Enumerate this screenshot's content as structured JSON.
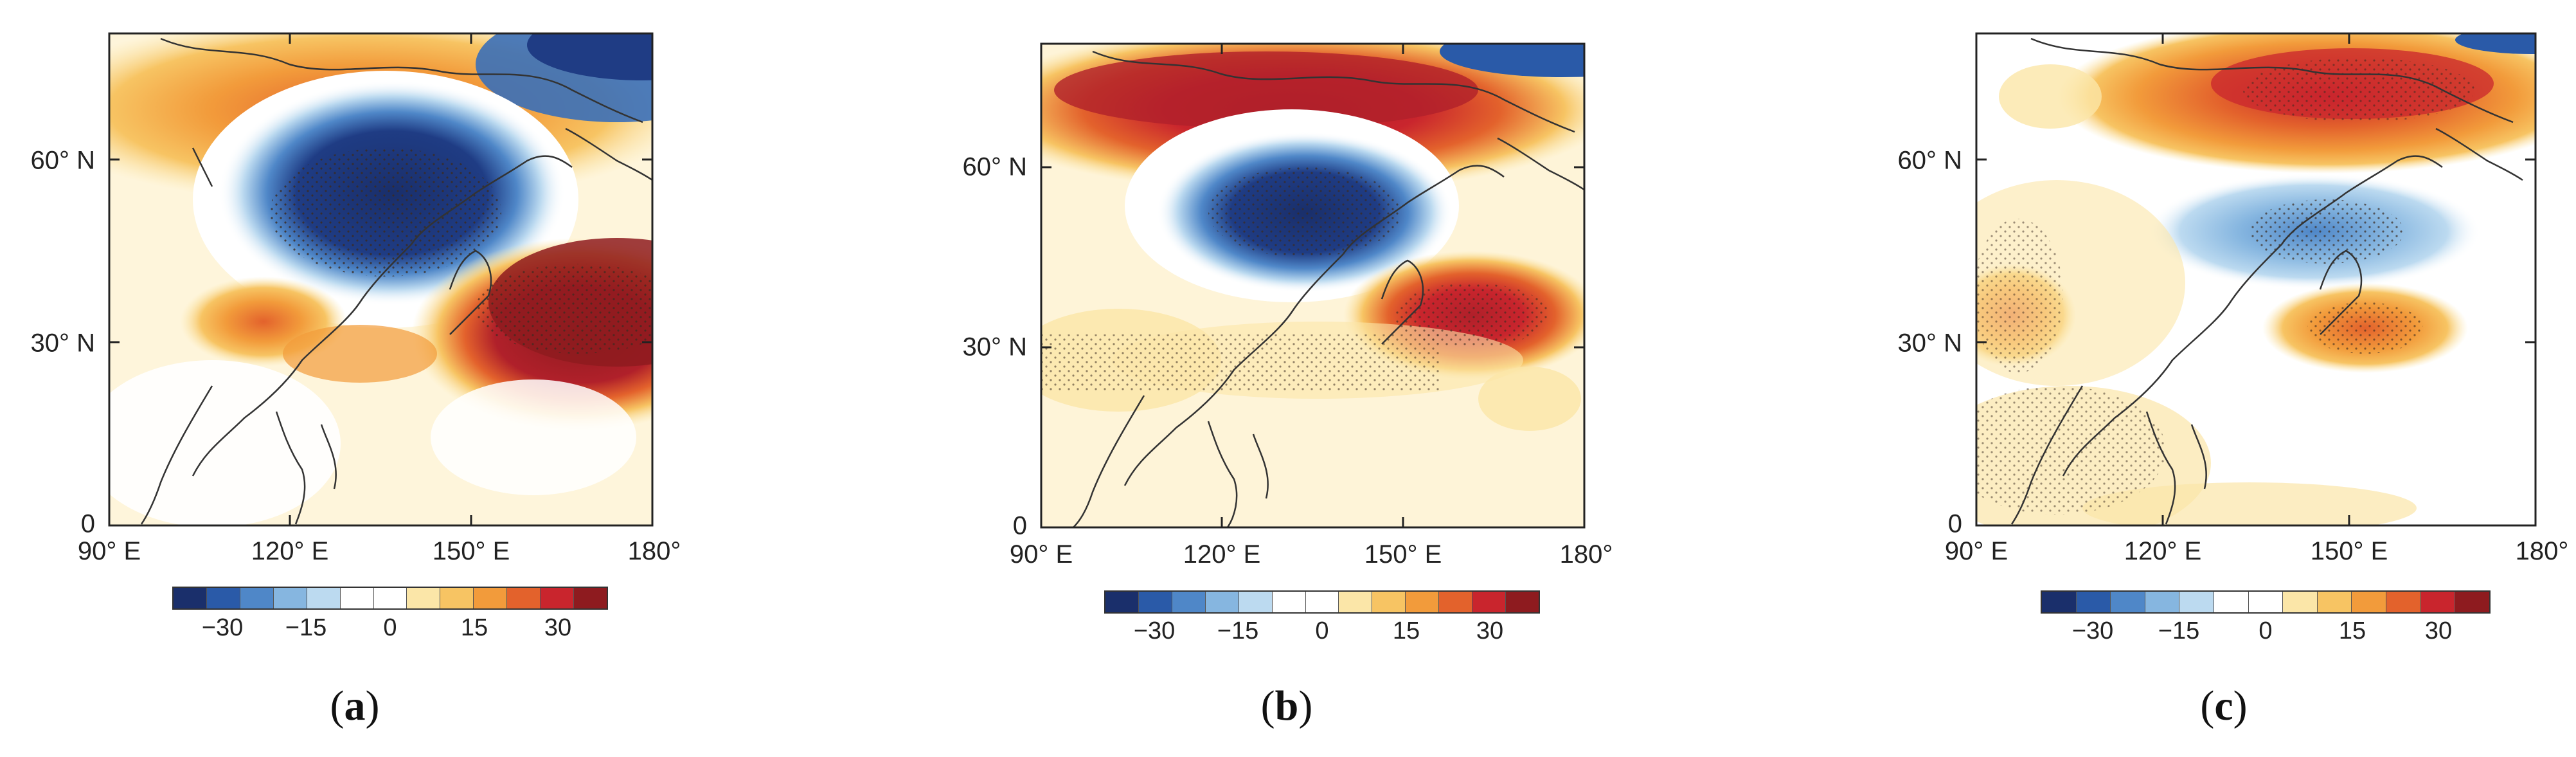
{
  "figure": {
    "panels": [
      {
        "id": "a",
        "label": "a",
        "lat_labels": [
          "60° N",
          "30° N",
          "0"
        ],
        "lon_labels": [
          "90° E",
          "120° E",
          "150° E",
          "180°"
        ],
        "colorbar_ticks": [
          "−30",
          "−15",
          "0",
          "15",
          "30"
        ]
      },
      {
        "id": "b",
        "label": "b",
        "lat_labels": [
          "60° N",
          "30° N",
          "0"
        ],
        "lon_labels": [
          "90° E",
          "120° E",
          "150° E",
          "180°"
        ],
        "colorbar_ticks": [
          "−30",
          "−15",
          "0",
          "15",
          "30"
        ]
      },
      {
        "id": "c",
        "label": "c",
        "lat_labels": [
          "60° N",
          "30° N",
          "0"
        ],
        "lon_labels": [
          "90° E",
          "120° E",
          "150° E",
          "180°"
        ],
        "colorbar_ticks": [
          "−30",
          "−15",
          "0",
          "15",
          "30"
        ]
      }
    ],
    "colorbar_colors": [
      "#1a2f6b",
      "#2a5aa8",
      "#4f87c8",
      "#86b6e0",
      "#bcdaf0",
      "#ffffff",
      "#ffffff",
      "#fbe6a8",
      "#f7c463",
      "#f29b3b",
      "#e3622c",
      "#c9252d",
      "#8e1b1f"
    ]
  }
}
